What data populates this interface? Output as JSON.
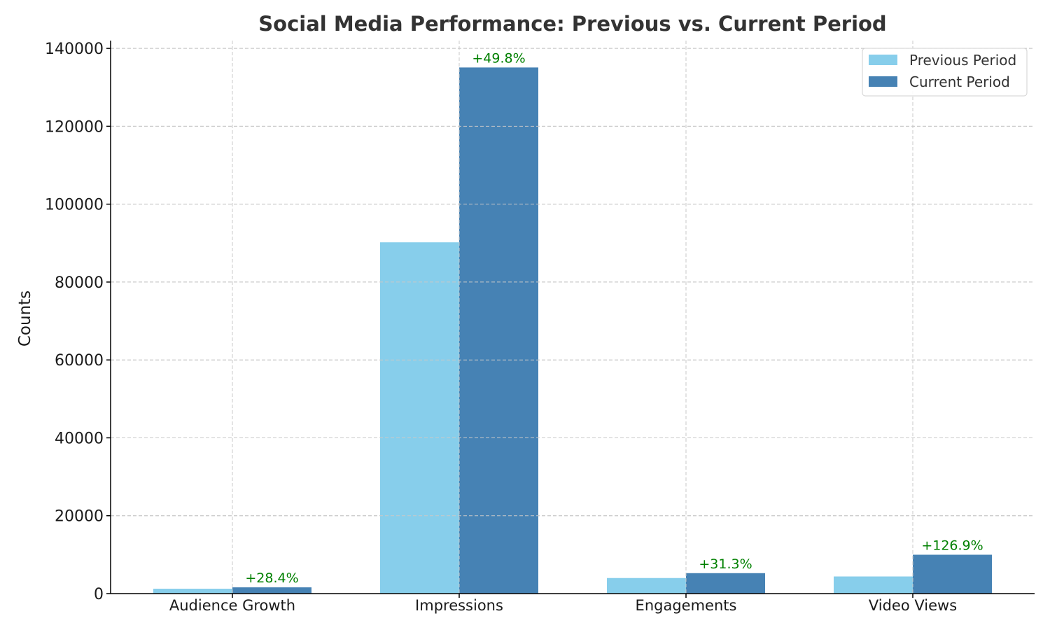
{
  "chart_data": {
    "type": "bar",
    "title": "Social Media Performance: Previous vs. Current Period",
    "xlabel": "",
    "ylabel": "Counts",
    "ylim": [
      0,
      142000
    ],
    "yticks": [
      0,
      20000,
      40000,
      60000,
      80000,
      100000,
      120000,
      140000
    ],
    "grid": true,
    "legend_position": "top-right",
    "categories": [
      "Audience Growth",
      "Impressions",
      "Engagements",
      "Video Views"
    ],
    "series": [
      {
        "name": "Previous Period",
        "color": "#87CEEB",
        "values": [
          1250,
          90200,
          4000,
          4400
        ]
      },
      {
        "name": "Current Period",
        "color": "#4682B4",
        "values": [
          1605,
          135100,
          5252,
          9980
        ]
      }
    ],
    "annotations": [
      "+28.4%",
      "+49.8%",
      "+31.3%",
      "+126.9%"
    ],
    "annotation_color": "#008000"
  }
}
